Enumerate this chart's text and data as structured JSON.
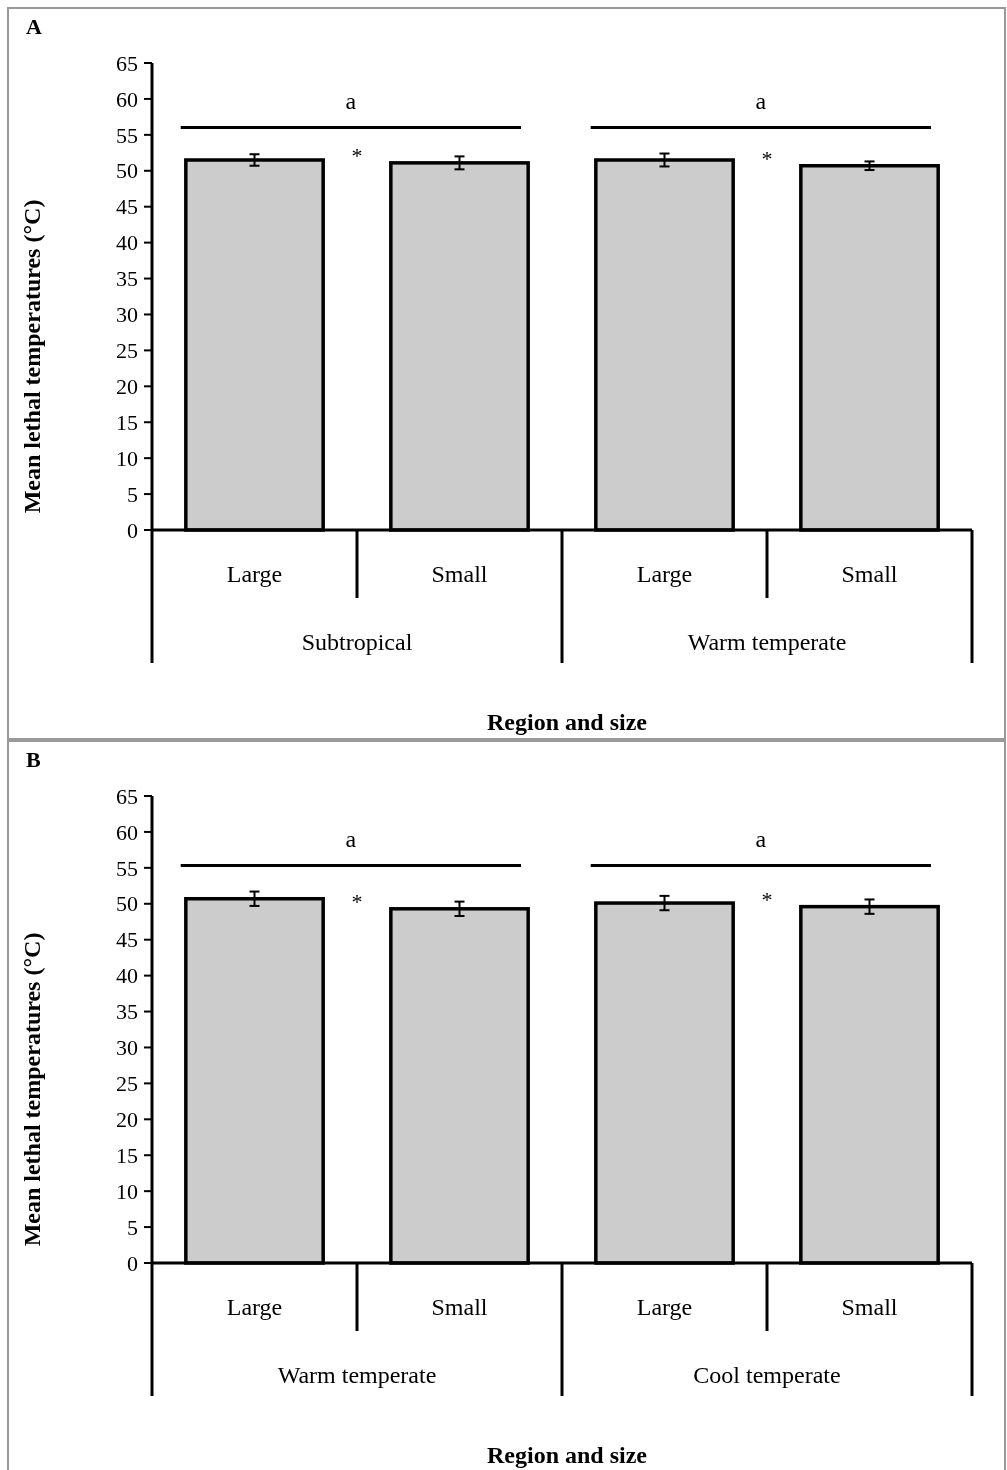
{
  "chart_data": [
    {
      "type": "bar",
      "title": "A",
      "xlabel": "Region and size",
      "ylabel": "Mean lethal temperatures (°C)",
      "categories": [
        "Large",
        "Small",
        "Large",
        "Small"
      ],
      "values": [
        51.5,
        51.1,
        51.5,
        50.7
      ],
      "errors": [
        0.8,
        0.9,
        0.9,
        0.6
      ],
      "color": "#cccccc",
      "ylim": [
        0,
        65
      ],
      "yticks": [
        0,
        5,
        10,
        15,
        20,
        25,
        30,
        35,
        40,
        45,
        50,
        55,
        60,
        65
      ],
      "grid": false,
      "annotations": [
        "a",
        "a",
        "*",
        "*",
        "Subtropical",
        "Warm temperate"
      ]
    },
    {
      "type": "bar",
      "title": "B",
      "xlabel": "Region and size",
      "ylabel": "Mean lethal temperatures (°C)",
      "categories": [
        "Large",
        "Small",
        "Large",
        "Small"
      ],
      "values": [
        50.7,
        49.3,
        50.1,
        49.6
      ],
      "errors": [
        1.0,
        1.0,
        1.0,
        1.0
      ],
      "color": "#cccccc",
      "ylim": [
        0,
        65
      ],
      "yticks": [
        0,
        5,
        10,
        15,
        20,
        25,
        30,
        35,
        40,
        45,
        50,
        55,
        60,
        65
      ],
      "grid": false,
      "annotations": [
        "a",
        "a",
        "*",
        "*",
        "Warm temperate",
        "Cool temperate"
      ]
    }
  ]
}
